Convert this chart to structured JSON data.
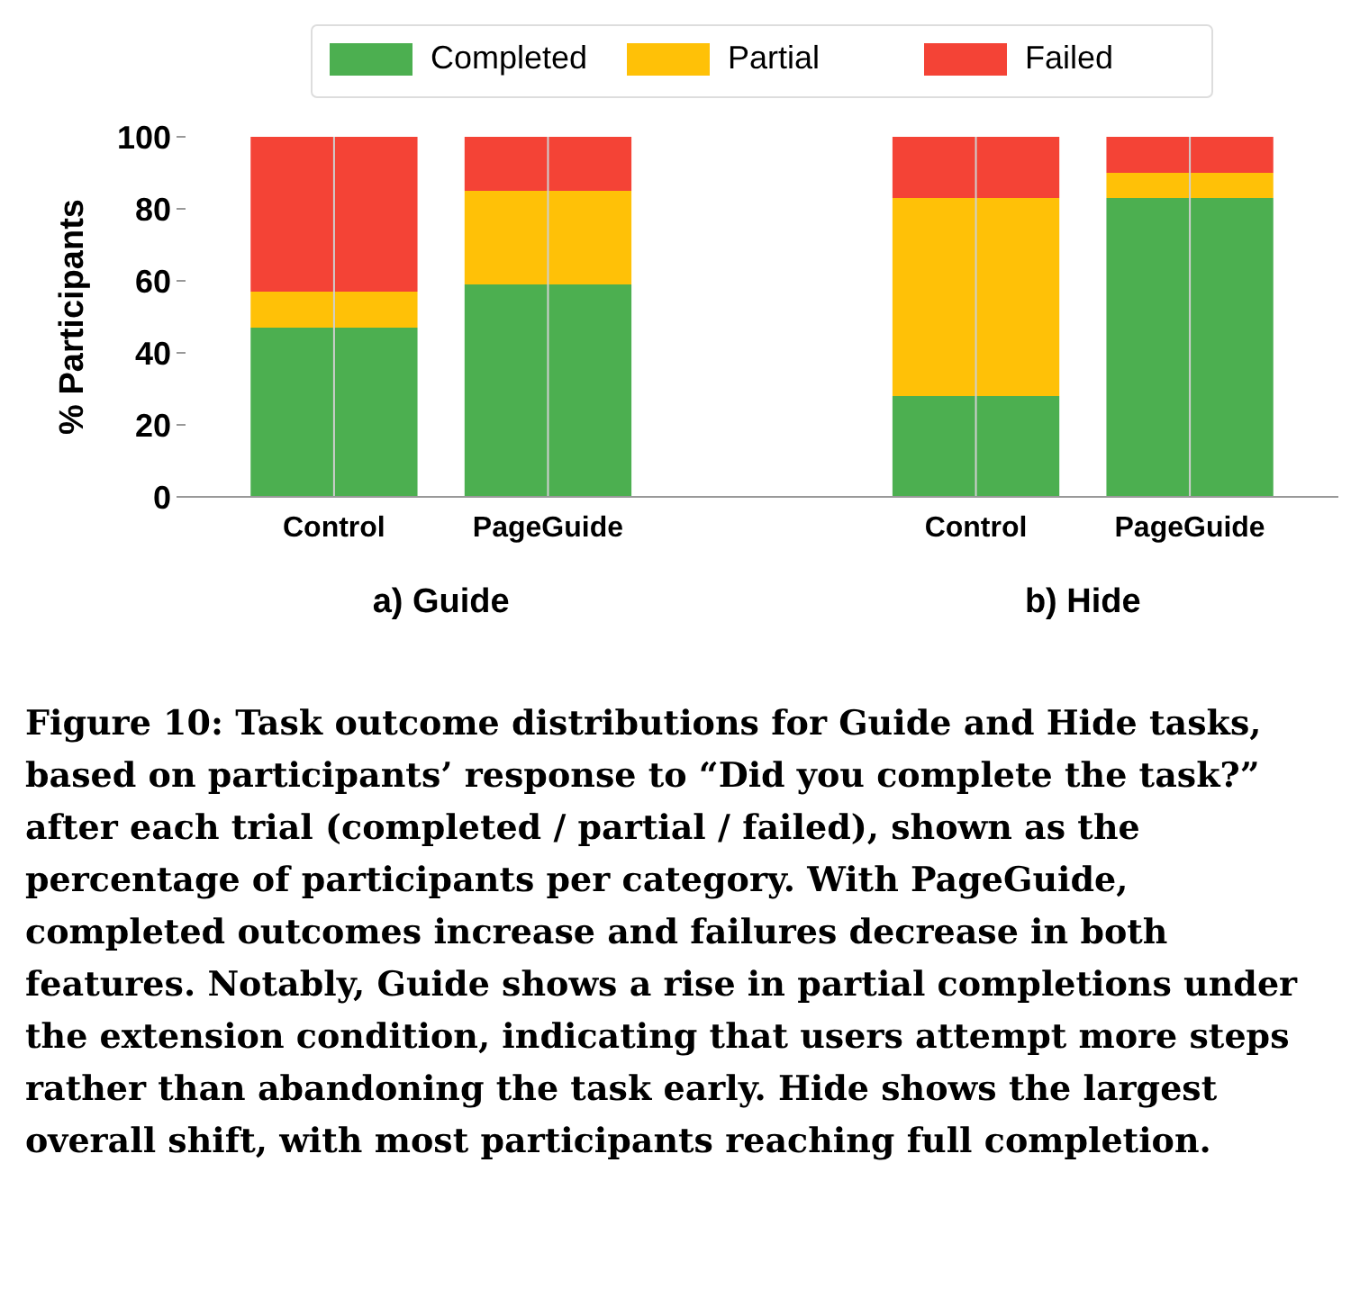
{
  "chart_data": {
    "type": "bar",
    "stacked": true,
    "ylabel": "% Participants",
    "categories": [
      "Control",
      "PageGuide",
      null,
      "Control",
      "PageGuide"
    ],
    "series": [
      {
        "name": "Completed",
        "color": "#4caf50",
        "values": [
          47,
          59,
          null,
          28,
          83
        ]
      },
      {
        "name": "Partial",
        "color": "#ffc107",
        "values": [
          10,
          26,
          null,
          55,
          7
        ]
      },
      {
        "name": "Failed",
        "color": "#f44336",
        "values": [
          43,
          15,
          null,
          17,
          10
        ]
      }
    ],
    "ylim": [
      0,
      100
    ],
    "yticks": [
      0,
      20,
      40,
      60,
      80,
      100
    ],
    "grid": "x",
    "legend": "top",
    "annotations": [
      "a) Guide",
      "b) Hide",
      "Figure 10: Task outcome distributions for Guide and Hide tasks, based on participants’ response to “Did you complete the task?” after each trial (completed / partial / failed), shown as the percentage of participants per category. With PageGuide, completed outcomes increase and failures decrease in both features. Notably, Guide shows a rise in partial completions under the extension condition, indicating that users attempt more steps rather than abandoning the task early. Hide shows the largest overall shift, with most participants reaching full completion."
    ]
  }
}
